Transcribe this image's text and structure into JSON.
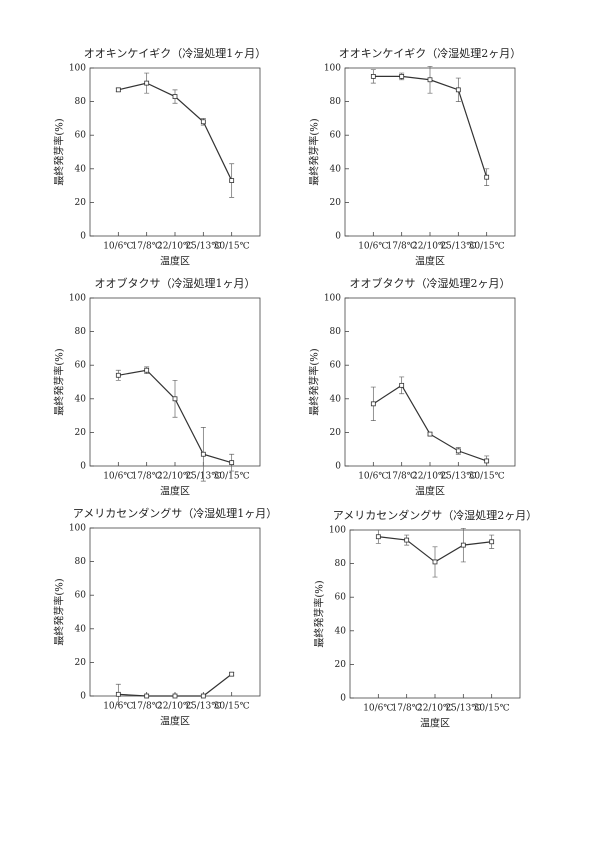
{
  "chart_data": [
    {
      "type": "line",
      "title": "オオキンケイギク（冷湿処理1ヶ月）",
      "xlabel": "温度区",
      "ylabel": "最終発芽率(%)",
      "categories": [
        "10/6℃",
        "17/8℃",
        "22/10℃",
        "25/13℃",
        "30/15℃"
      ],
      "series": [
        {
          "color": "#333333",
          "values": [
            87,
            91,
            83,
            68,
            33
          ],
          "errors": [
            1,
            6,
            4,
            2,
            10
          ]
        }
      ],
      "ylim": [
        0,
        100
      ],
      "yticks": [
        0,
        20,
        40,
        60,
        80,
        100
      ]
    },
    {
      "type": "line",
      "title": "オオキンケイギク（冷湿処理2ヶ月）",
      "xlabel": "温度区",
      "ylabel": "最終発芽率(%)",
      "categories": [
        "10/6℃",
        "17/8℃",
        "22/10℃",
        "25/13℃",
        "30/15℃"
      ],
      "series": [
        {
          "color": "#333333",
          "values": [
            95,
            95,
            93,
            87,
            35
          ],
          "errors": [
            4,
            2,
            8,
            7,
            5
          ]
        }
      ],
      "ylim": [
        0,
        100
      ],
      "yticks": [
        0,
        20,
        40,
        60,
        80,
        100
      ]
    },
    {
      "type": "line",
      "title": "オオブタクサ（冷湿処理1ヶ月）",
      "xlabel": "温度区",
      "ylabel": "最終発芽率(%)",
      "categories": [
        "10/6℃",
        "17/8℃",
        "22/10℃",
        "25/13℃",
        "30/15℃"
      ],
      "series": [
        {
          "color": "#333333",
          "values": [
            54,
            57,
            40,
            7,
            2
          ],
          "errors": [
            3,
            2,
            11,
            16,
            5
          ]
        }
      ],
      "ylim": [
        0,
        100
      ],
      "yticks": [
        0,
        20,
        40,
        60,
        80,
        100
      ]
    },
    {
      "type": "line",
      "title": "オオブタクサ（冷湿処理2ヶ月）",
      "xlabel": "温度区",
      "ylabel": "最終発芽率(%)",
      "categories": [
        "10/6℃",
        "17/8℃",
        "22/10℃",
        "25/13℃",
        "30/15℃"
      ],
      "series": [
        {
          "color": "#333333",
          "values": [
            37,
            48,
            19,
            9,
            3
          ],
          "errors": [
            10,
            5,
            1,
            2,
            3
          ]
        }
      ],
      "ylim": [
        0,
        100
      ],
      "yticks": [
        0,
        20,
        40,
        60,
        80,
        100
      ]
    },
    {
      "type": "line",
      "title": "アメリカセンダングサ（冷湿処理1ヶ月）",
      "xlabel": "温度区",
      "ylabel": "最終発芽率(%)",
      "categories": [
        "10/6℃",
        "17/8℃",
        "22/10℃",
        "25/13℃",
        "30/15℃"
      ],
      "series": [
        {
          "color": "#333333",
          "values": [
            1,
            0,
            0,
            0,
            13
          ],
          "errors": [
            6,
            0,
            0,
            0,
            1
          ]
        }
      ],
      "ylim": [
        0,
        100
      ],
      "yticks": [
        0,
        20,
        40,
        60,
        80,
        100
      ]
    },
    {
      "type": "line",
      "title": "アメリカセンダングサ（冷湿処理2ヶ月）",
      "xlabel": "温度区",
      "ylabel": "最終発芽率(%)",
      "categories": [
        "10/6℃",
        "17/8℃",
        "22/10℃",
        "25/13℃",
        "30/15℃"
      ],
      "series": [
        {
          "color": "#333333",
          "values": [
            96,
            94,
            81,
            91,
            93
          ],
          "errors": [
            4,
            3,
            9,
            10,
            4
          ]
        }
      ],
      "ylim": [
        0,
        100
      ],
      "yticks": [
        0,
        20,
        40,
        60,
        80,
        100
      ]
    }
  ]
}
